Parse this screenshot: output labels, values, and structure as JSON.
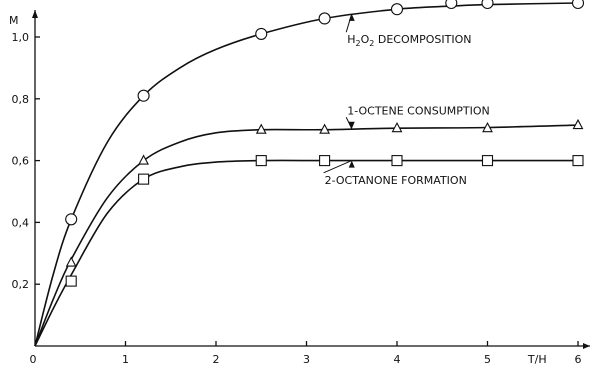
{
  "chart_data": {
    "type": "line",
    "title": "",
    "xlabel": "T/H",
    "ylabel": "M",
    "xlim": [
      0,
      6.2
    ],
    "ylim": [
      0,
      1.15
    ],
    "grid": false,
    "x_ticks": [
      {
        "v": 0,
        "label": "0"
      },
      {
        "v": 1,
        "label": "1"
      },
      {
        "v": 2,
        "label": "2"
      },
      {
        "v": 3,
        "label": "3"
      },
      {
        "v": 4,
        "label": "4"
      },
      {
        "v": 5,
        "label": "5"
      },
      {
        "v": 6,
        "label": "6"
      }
    ],
    "y_ticks": [
      {
        "v": 0.2,
        "label": "0,2"
      },
      {
        "v": 0.4,
        "label": "0,4"
      },
      {
        "v": 0.6,
        "label": "0,6"
      },
      {
        "v": 0.8,
        "label": "0,8"
      },
      {
        "v": 1.0,
        "label": "1,0"
      }
    ],
    "series": [
      {
        "name": "H2O2 DECOMPOSITION",
        "marker": "circle",
        "points": [
          [
            0.4,
            0.41
          ],
          [
            1.2,
            0.81
          ],
          [
            2.5,
            1.01
          ],
          [
            3.2,
            1.06
          ],
          [
            4.0,
            1.09
          ],
          [
            4.6,
            1.11
          ],
          [
            5.0,
            1.11
          ],
          [
            6.0,
            1.11
          ]
        ],
        "curve": [
          [
            0,
            0
          ],
          [
            0.2,
            0.23
          ],
          [
            0.4,
            0.41
          ],
          [
            0.8,
            0.66
          ],
          [
            1.2,
            0.81
          ],
          [
            1.6,
            0.9
          ],
          [
            2.0,
            0.96
          ],
          [
            2.5,
            1.01
          ],
          [
            3.2,
            1.06
          ],
          [
            4.0,
            1.09
          ],
          [
            4.6,
            1.1
          ],
          [
            5.0,
            1.105
          ],
          [
            6.0,
            1.11
          ]
        ]
      },
      {
        "name": "1-OCTENE CONSUMPTION",
        "marker": "triangle",
        "points": [
          [
            0.4,
            0.27
          ],
          [
            1.2,
            0.6
          ],
          [
            2.5,
            0.7
          ],
          [
            3.2,
            0.7
          ],
          [
            4.0,
            0.705
          ],
          [
            5.0,
            0.705
          ],
          [
            6.0,
            0.715
          ]
        ],
        "curve": [
          [
            0,
            0
          ],
          [
            0.2,
            0.15
          ],
          [
            0.4,
            0.28
          ],
          [
            0.8,
            0.48
          ],
          [
            1.2,
            0.6
          ],
          [
            1.6,
            0.66
          ],
          [
            2.0,
            0.69
          ],
          [
            2.5,
            0.7
          ],
          [
            3.2,
            0.7
          ],
          [
            4.0,
            0.705
          ],
          [
            5.0,
            0.707
          ],
          [
            6.0,
            0.715
          ]
        ]
      },
      {
        "name": "2-OCTANONE FORMATION",
        "marker": "square",
        "points": [
          [
            0.4,
            0.21
          ],
          [
            1.2,
            0.54
          ],
          [
            2.5,
            0.6
          ],
          [
            3.2,
            0.6
          ],
          [
            4.0,
            0.6
          ],
          [
            5.0,
            0.6
          ],
          [
            6.0,
            0.6
          ]
        ],
        "curve": [
          [
            0,
            0
          ],
          [
            0.2,
            0.12
          ],
          [
            0.4,
            0.23
          ],
          [
            0.8,
            0.43
          ],
          [
            1.2,
            0.54
          ],
          [
            1.6,
            0.58
          ],
          [
            2.0,
            0.595
          ],
          [
            2.5,
            0.6
          ],
          [
            3.2,
            0.6
          ],
          [
            4.0,
            0.6
          ],
          [
            5.0,
            0.6
          ],
          [
            6.0,
            0.6
          ]
        ]
      }
    ],
    "annotations": [
      {
        "text_parts": [
          "H",
          "2",
          "O",
          "2",
          " DECOMPOSITION"
        ],
        "target_x": 3.5,
        "target_y": 1.075,
        "label_x": 3.45,
        "label_y": 0.98
      },
      {
        "text_parts": [
          "1-OCTENE CONSUMPTION"
        ],
        "target_x": 3.5,
        "target_y": 0.703,
        "label_x": 3.45,
        "label_y": 0.75
      },
      {
        "text_parts": [
          "2-OCTANONE FORMATION"
        ],
        "target_x": 3.5,
        "target_y": 0.6,
        "label_x": 3.2,
        "label_y": 0.525
      }
    ]
  }
}
